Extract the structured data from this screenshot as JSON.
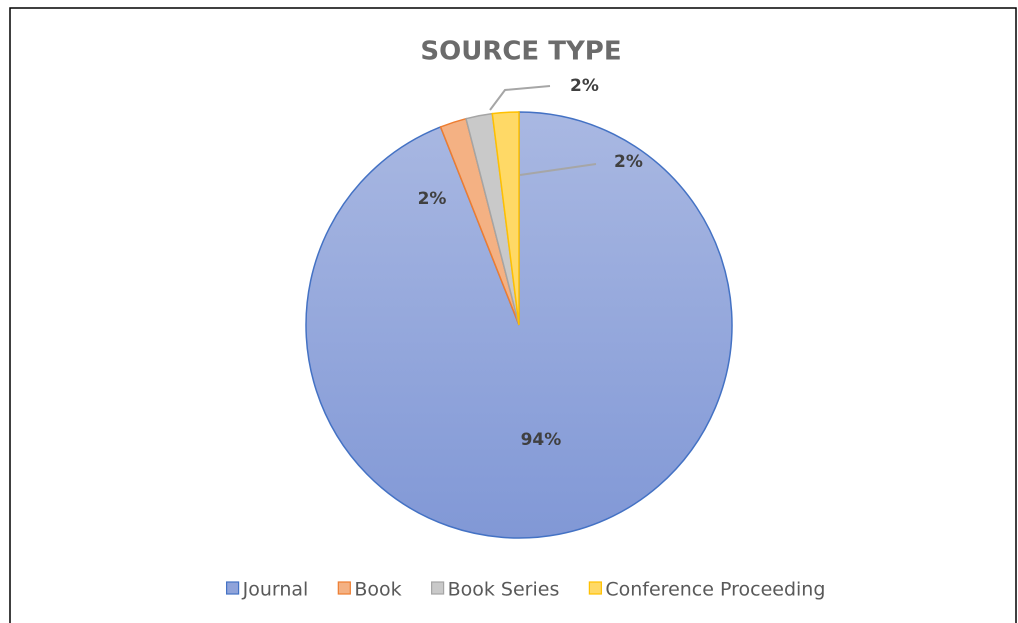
{
  "chart_data": {
    "type": "pie",
    "title": "SOURCE TYPE",
    "categories": [
      "Journal",
      "Book",
      "Book Series",
      "Conference Proceeding"
    ],
    "values": [
      94,
      2,
      2,
      2
    ],
    "value_labels": [
      "94%",
      "2%",
      "2%",
      "2%"
    ],
    "colors": [
      "#8fa3da",
      "#f4b183",
      "#c9c9c9",
      "#ffd966"
    ],
    "edge_colors": [
      "#4472c4",
      "#ed7d31",
      "#a5a5a5",
      "#ffc000"
    ],
    "legend": "bottom"
  }
}
